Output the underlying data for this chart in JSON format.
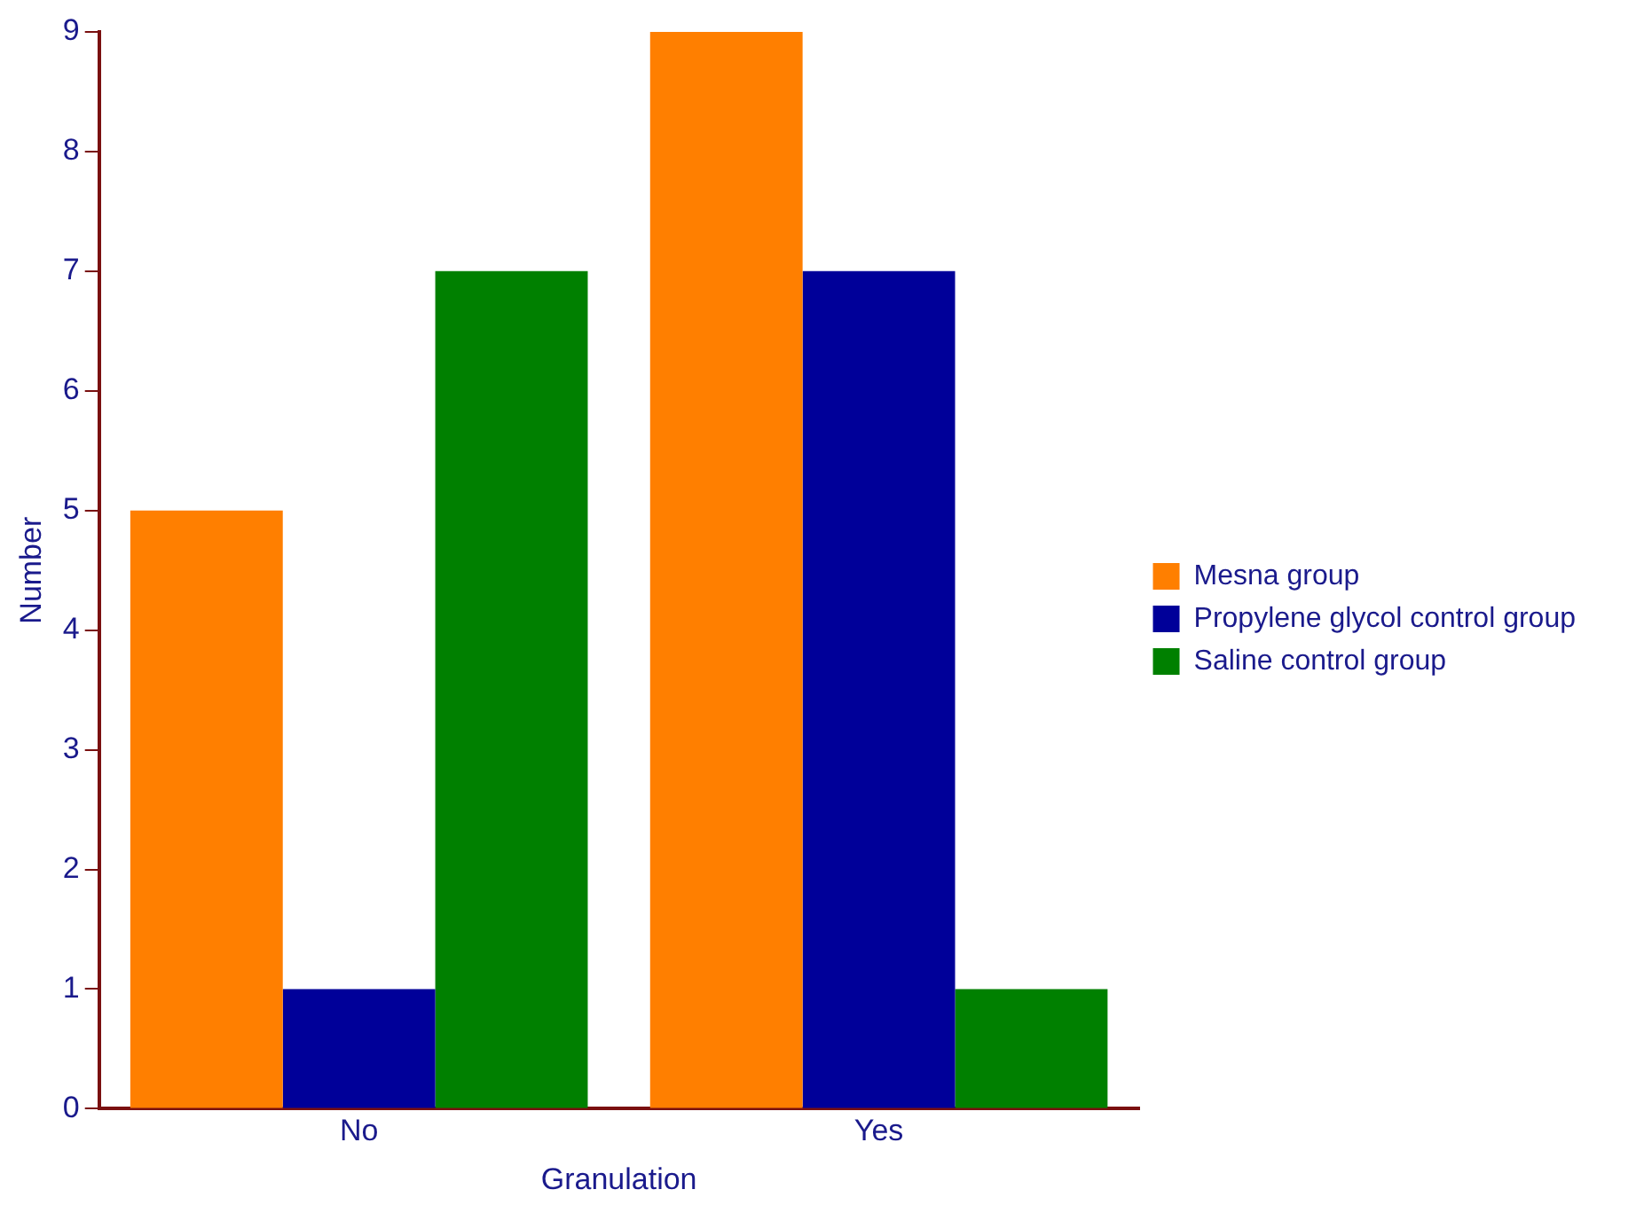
{
  "chart_data": {
    "type": "bar",
    "xlabel": "Granulation",
    "ylabel": "Number",
    "categories": [
      "No",
      "Yes"
    ],
    "series": [
      {
        "name": "Mesna group",
        "color": "#ff7f00",
        "values": [
          5,
          9
        ]
      },
      {
        "name": "Propylene glycol control group",
        "color": "#000099",
        "values": [
          1,
          7
        ]
      },
      {
        "name": "Saline control group",
        "color": "#008000",
        "values": [
          7,
          1
        ]
      }
    ],
    "ylim": [
      0,
      9
    ],
    "yticks": [
      0,
      1,
      2,
      3,
      4,
      5,
      6,
      7,
      8,
      9
    ],
    "grid": false,
    "legend": "right"
  }
}
